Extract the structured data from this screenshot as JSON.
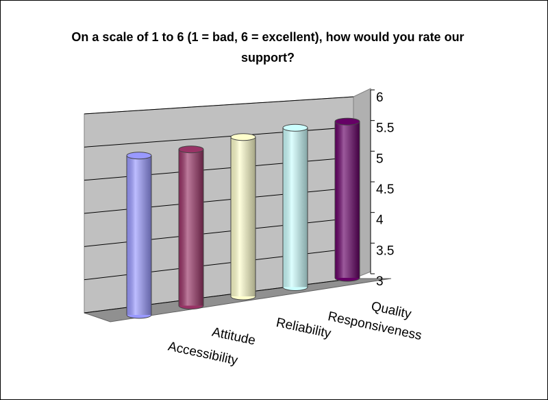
{
  "chart_data": {
    "type": "cylinder",
    "title": "On a scale of 1 to 6 (1 = bad, 6 = excellent), how would you rate our support?",
    "categories": [
      "Accessibility",
      "Attitude",
      "Reliability",
      "Responsiveness",
      "Quality"
    ],
    "series": [
      {
        "values": [
          5.6,
          5.55,
          5.6,
          5.6,
          5.55
        ],
        "colors": [
          "#9999ff",
          "#993366",
          "#ffffcc",
          "#ccffff",
          "#660066"
        ]
      }
    ],
    "ylim": [
      3,
      6
    ],
    "yticks": [
      3,
      3.5,
      4,
      4.5,
      5,
      5.5,
      6
    ],
    "grid": true
  }
}
